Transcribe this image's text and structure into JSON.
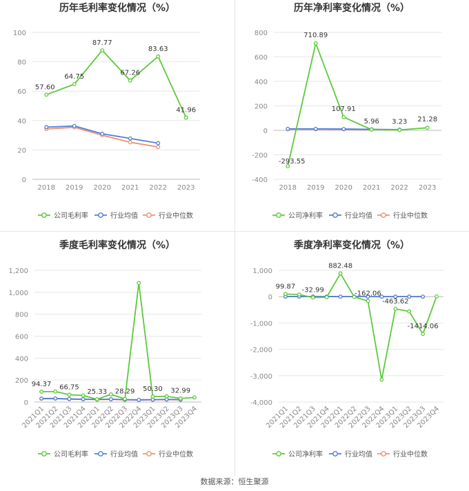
{
  "footer": {
    "source": "数据来源：恒生聚源"
  },
  "colors": {
    "company": "#5cc93b",
    "industry_avg": "#4f7fd9",
    "industry_median": "#f08f6e",
    "grid": "#e6e6e6",
    "axis_text": "#888888"
  },
  "chart_data": [
    {
      "id": "annual_gross",
      "type": "line",
      "title": "历年毛利率变化情况（%）",
      "categories": [
        "2018",
        "2019",
        "2020",
        "2021",
        "2022",
        "2023"
      ],
      "ylim": [
        0,
        100
      ],
      "yticks": [
        0,
        20,
        40,
        60,
        80,
        100
      ],
      "ytick_labels": [
        "0",
        "20",
        "40",
        "60",
        "80",
        "100"
      ],
      "series": [
        {
          "name": "公司毛利率",
          "values": [
            57.6,
            64.75,
            87.77,
            67.26,
            83.63,
            41.96
          ],
          "labels": [
            "57.60",
            "64.75",
            "87.77",
            "67.26",
            "83.63",
            "41.96"
          ]
        },
        {
          "name": "行业均值",
          "values": [
            35.5,
            36.3,
            31.0,
            27.8,
            24.6,
            null
          ]
        },
        {
          "name": "行业中位数",
          "values": [
            34.2,
            35.4,
            30.0,
            25.2,
            22.0,
            null
          ]
        }
      ],
      "legend": [
        "公司毛利率",
        "行业均值",
        "行业中位数"
      ]
    },
    {
      "id": "annual_net",
      "type": "line",
      "title": "历年净利率变化情况（%）",
      "categories": [
        "2018",
        "2019",
        "2020",
        "2021",
        "2022",
        "2023"
      ],
      "ylim": [
        -400,
        800
      ],
      "yticks": [
        -400,
        -200,
        0,
        200,
        400,
        600,
        800
      ],
      "ytick_labels": [
        "-400",
        "-200",
        "0",
        "200",
        "400",
        "600",
        "800"
      ],
      "series": [
        {
          "name": "公司净利率",
          "values": [
            -293.55,
            710.89,
            107.91,
            5.96,
            3.23,
            21.28
          ],
          "labels": [
            "-293.55",
            "710.89",
            "107.91",
            "5.96",
            "3.23",
            "21.28"
          ]
        },
        {
          "name": "行业均值",
          "values": [
            12,
            12,
            11,
            8,
            6,
            null
          ]
        },
        {
          "name": "行业中位数",
          "values": [
            9,
            9,
            8,
            6,
            4,
            null
          ]
        }
      ],
      "legend": [
        "公司净利率",
        "行业均值",
        "行业中位数"
      ]
    },
    {
      "id": "quarterly_gross",
      "type": "line",
      "title": "季度毛利率变化情况（%）",
      "categories": [
        "2021Q1",
        "2021Q2",
        "2021Q3",
        "2021Q4",
        "2022Q1",
        "2022Q2",
        "2022Q3",
        "2022Q4",
        "2023Q1",
        "2023Q2",
        "2023Q3",
        "2023Q4"
      ],
      "ylim": [
        0,
        1200
      ],
      "yticks": [
        0,
        200,
        400,
        600,
        800,
        1000,
        1200
      ],
      "ytick_labels": [
        "0",
        "200",
        "400",
        "600",
        "800",
        "1,000",
        "1,200"
      ],
      "series": [
        {
          "name": "公司毛利率",
          "values": [
            94.37,
            96,
            66.75,
            60,
            25.33,
            70,
            28.29,
            1085,
            50.3,
            52,
            32.99,
            42
          ],
          "labels": [
            "94.37",
            "",
            "66.75",
            "",
            "25.33",
            "",
            "28.29",
            "",
            "50.30",
            "",
            "32.99",
            ""
          ]
        },
        {
          "name": "行业均值",
          "values": [
            32,
            33,
            28,
            26,
            24,
            26,
            22,
            20,
            22,
            24,
            22,
            null
          ]
        },
        {
          "name": "行业中位数",
          "values": [
            30,
            31,
            26,
            24,
            22,
            24,
            20,
            18,
            20,
            22,
            20,
            null
          ]
        }
      ],
      "legend": [
        "公司毛利率",
        "行业均值",
        "行业中位数"
      ]
    },
    {
      "id": "quarterly_net",
      "type": "line",
      "title": "季度净利率变化情况（%）",
      "categories": [
        "2021Q1",
        "2021Q2",
        "2021Q3",
        "2021Q4",
        "2022Q1",
        "2022Q2",
        "2022Q3",
        "2022Q4",
        "2023Q1",
        "2023Q2",
        "2023Q3",
        "2023Q4"
      ],
      "ylim": [
        -4000,
        1000
      ],
      "yticks": [
        -4000,
        -3000,
        -2000,
        -1000,
        0,
        1000
      ],
      "ytick_labels": [
        "-4,000",
        "-3,000",
        "-2,000",
        "-1,000",
        "0",
        "1,000"
      ],
      "series": [
        {
          "name": "公司净利率",
          "values": [
            99.87,
            80,
            -32.99,
            -20,
            882.48,
            -10,
            -162.06,
            -3150,
            -463.62,
            -560,
            -1414.06,
            10
          ],
          "labels": [
            "99.87",
            "",
            "-32.99",
            "",
            "882.48",
            "",
            "-162.06",
            "",
            "-463.62",
            "",
            "-1414.06",
            ""
          ]
        },
        {
          "name": "行业均值",
          "values": [
            5,
            5,
            4,
            3,
            3,
            2,
            2,
            1,
            2,
            2,
            1,
            null
          ]
        },
        {
          "name": "行业中位数",
          "values": [
            3,
            3,
            2,
            2,
            2,
            1,
            1,
            0,
            1,
            1,
            0,
            null
          ]
        }
      ],
      "legend": [
        "公司净利率",
        "行业均值",
        "行业中位数"
      ]
    }
  ]
}
